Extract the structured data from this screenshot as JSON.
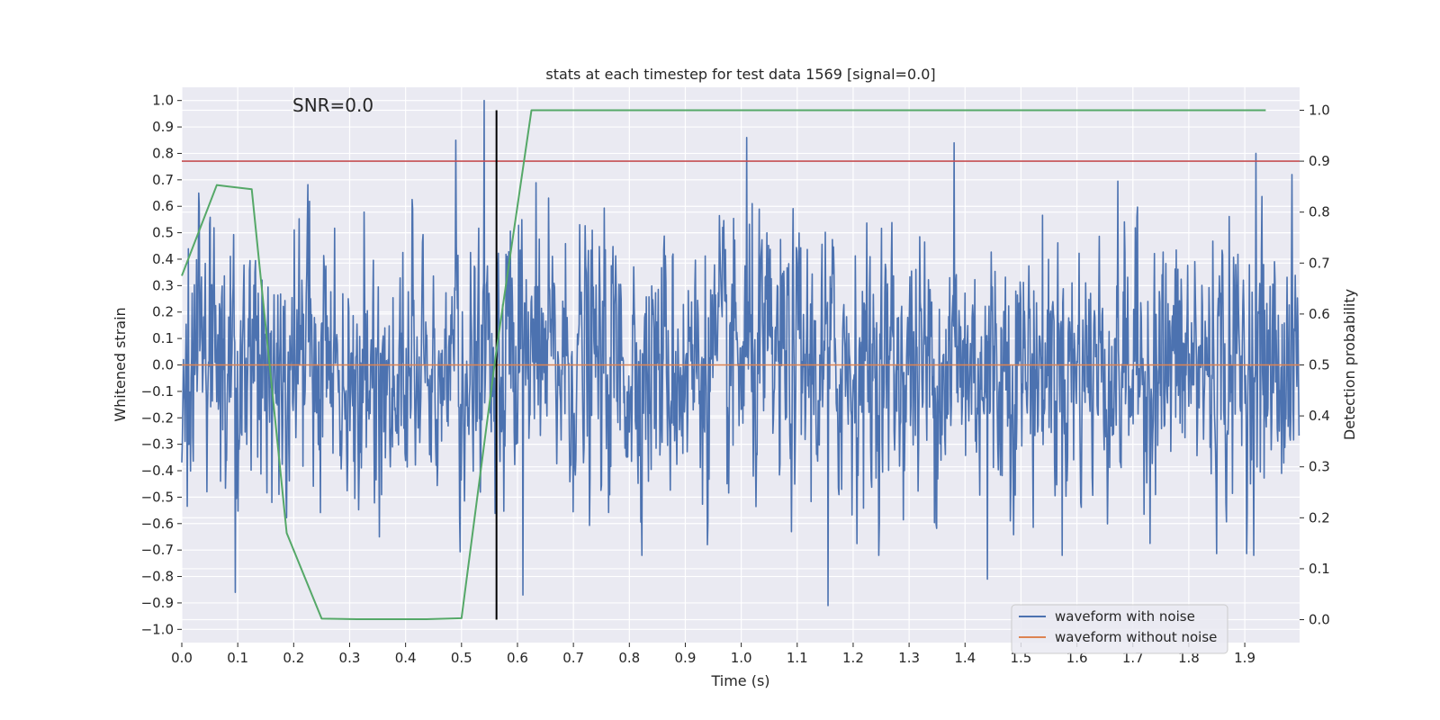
{
  "chart_data": {
    "type": "line",
    "title": "stats at each timestep for test data 1569 [signal=0.0]",
    "xlabel": "Time (s)",
    "ylabel_left": "Whitened strain",
    "ylabel_right": "Detection probability",
    "annotation": "SNR=0.0",
    "xlim": [
      0.0,
      1.998
    ],
    "ylim_left": [
      -1.05,
      1.05
    ],
    "ylim_right": [
      -0.045,
      1.045
    ],
    "x_ticks": [
      "0.0",
      "0.1",
      "0.2",
      "0.3",
      "0.4",
      "0.5",
      "0.6",
      "0.7",
      "0.8",
      "0.9",
      "1.0",
      "1.1",
      "1.2",
      "1.3",
      "1.4",
      "1.5",
      "1.6",
      "1.7",
      "1.8",
      "1.9"
    ],
    "y_ticks_left": [
      "1.0",
      "0.9",
      "0.8",
      "0.7",
      "0.6",
      "0.5",
      "0.4",
      "0.3",
      "0.2",
      "0.1",
      "0.0",
      "−0.1",
      "−0.2",
      "−0.3",
      "−0.4",
      "−0.5",
      "−0.6",
      "−0.7",
      "−0.8",
      "−0.9",
      "−1.0"
    ],
    "y_ticks_right": [
      "1.0",
      "0.9",
      "0.8",
      "0.7",
      "0.6",
      "0.5",
      "0.4",
      "0.3",
      "0.2",
      "0.1",
      "0.0"
    ],
    "series": [
      {
        "name": "waveform with noise",
        "color": "#4c72b0",
        "axis": "left",
        "description": "whitened noisy strain, approx. 2048 samples, amplitude mostly within ±0.6, peaks near 1.0 at t≈0.54 s",
        "amplitude_envelope": 0.55,
        "n_samples": 2048,
        "peaks": [
          {
            "x": 0.54,
            "y": 1.0
          },
          {
            "x": 0.49,
            "y": 0.85
          },
          {
            "x": 1.01,
            "y": 0.86
          },
          {
            "x": 1.38,
            "y": 0.84
          },
          {
            "x": 1.92,
            "y": 0.8
          },
          {
            "x": 0.096,
            "y": -0.86
          },
          {
            "x": 1.155,
            "y": -0.91
          },
          {
            "x": 0.61,
            "y": -0.87
          },
          {
            "x": 1.44,
            "y": -0.81
          }
        ]
      },
      {
        "name": "waveform without noise",
        "color": "#dd8452",
        "axis": "left",
        "x": [
          0.0,
          1.998
        ],
        "y": [
          0.0,
          0.0
        ]
      },
      {
        "name": "detection probability",
        "color": "#55a868",
        "axis": "right",
        "x": [
          0.0,
          0.0625,
          0.125,
          0.1875,
          0.25,
          0.3125,
          0.375,
          0.4375,
          0.5,
          0.5625,
          0.625,
          0.6875,
          0.75,
          0.8125,
          0.875,
          0.9375,
          1.0,
          1.0625,
          1.125,
          1.1875,
          1.25,
          1.3125,
          1.375,
          1.4375,
          1.5,
          1.5625,
          1.625,
          1.6875,
          1.75,
          1.8125,
          1.875,
          1.9375
        ],
        "y": [
          0.675,
          0.853,
          0.845,
          0.17,
          0.002,
          0.001,
          0.001,
          0.001,
          0.003,
          0.53,
          1.0,
          1.0,
          1.0,
          1.0,
          1.0,
          1.0,
          1.0,
          1.0,
          1.0,
          1.0,
          1.0,
          1.0,
          1.0,
          1.0,
          1.0,
          1.0,
          1.0,
          1.0,
          1.0,
          1.0,
          1.0,
          1.0
        ]
      }
    ],
    "threshold": {
      "value": 0.9,
      "axis": "right",
      "color": "#c44e52"
    },
    "vertical_marker": {
      "x": 0.5625,
      "y_range": [
        0.0,
        1.0
      ],
      "axis": "right",
      "color": "#000000"
    },
    "legend": {
      "placement": "lower-right",
      "entries": [
        {
          "label": "waveform with noise",
          "color": "#4c72b0"
        },
        {
          "label": "waveform without noise",
          "color": "#dd8452"
        }
      ]
    },
    "style": {
      "background": "#eaeaf2",
      "grid": true,
      "grid_color": "#ffffff"
    }
  }
}
